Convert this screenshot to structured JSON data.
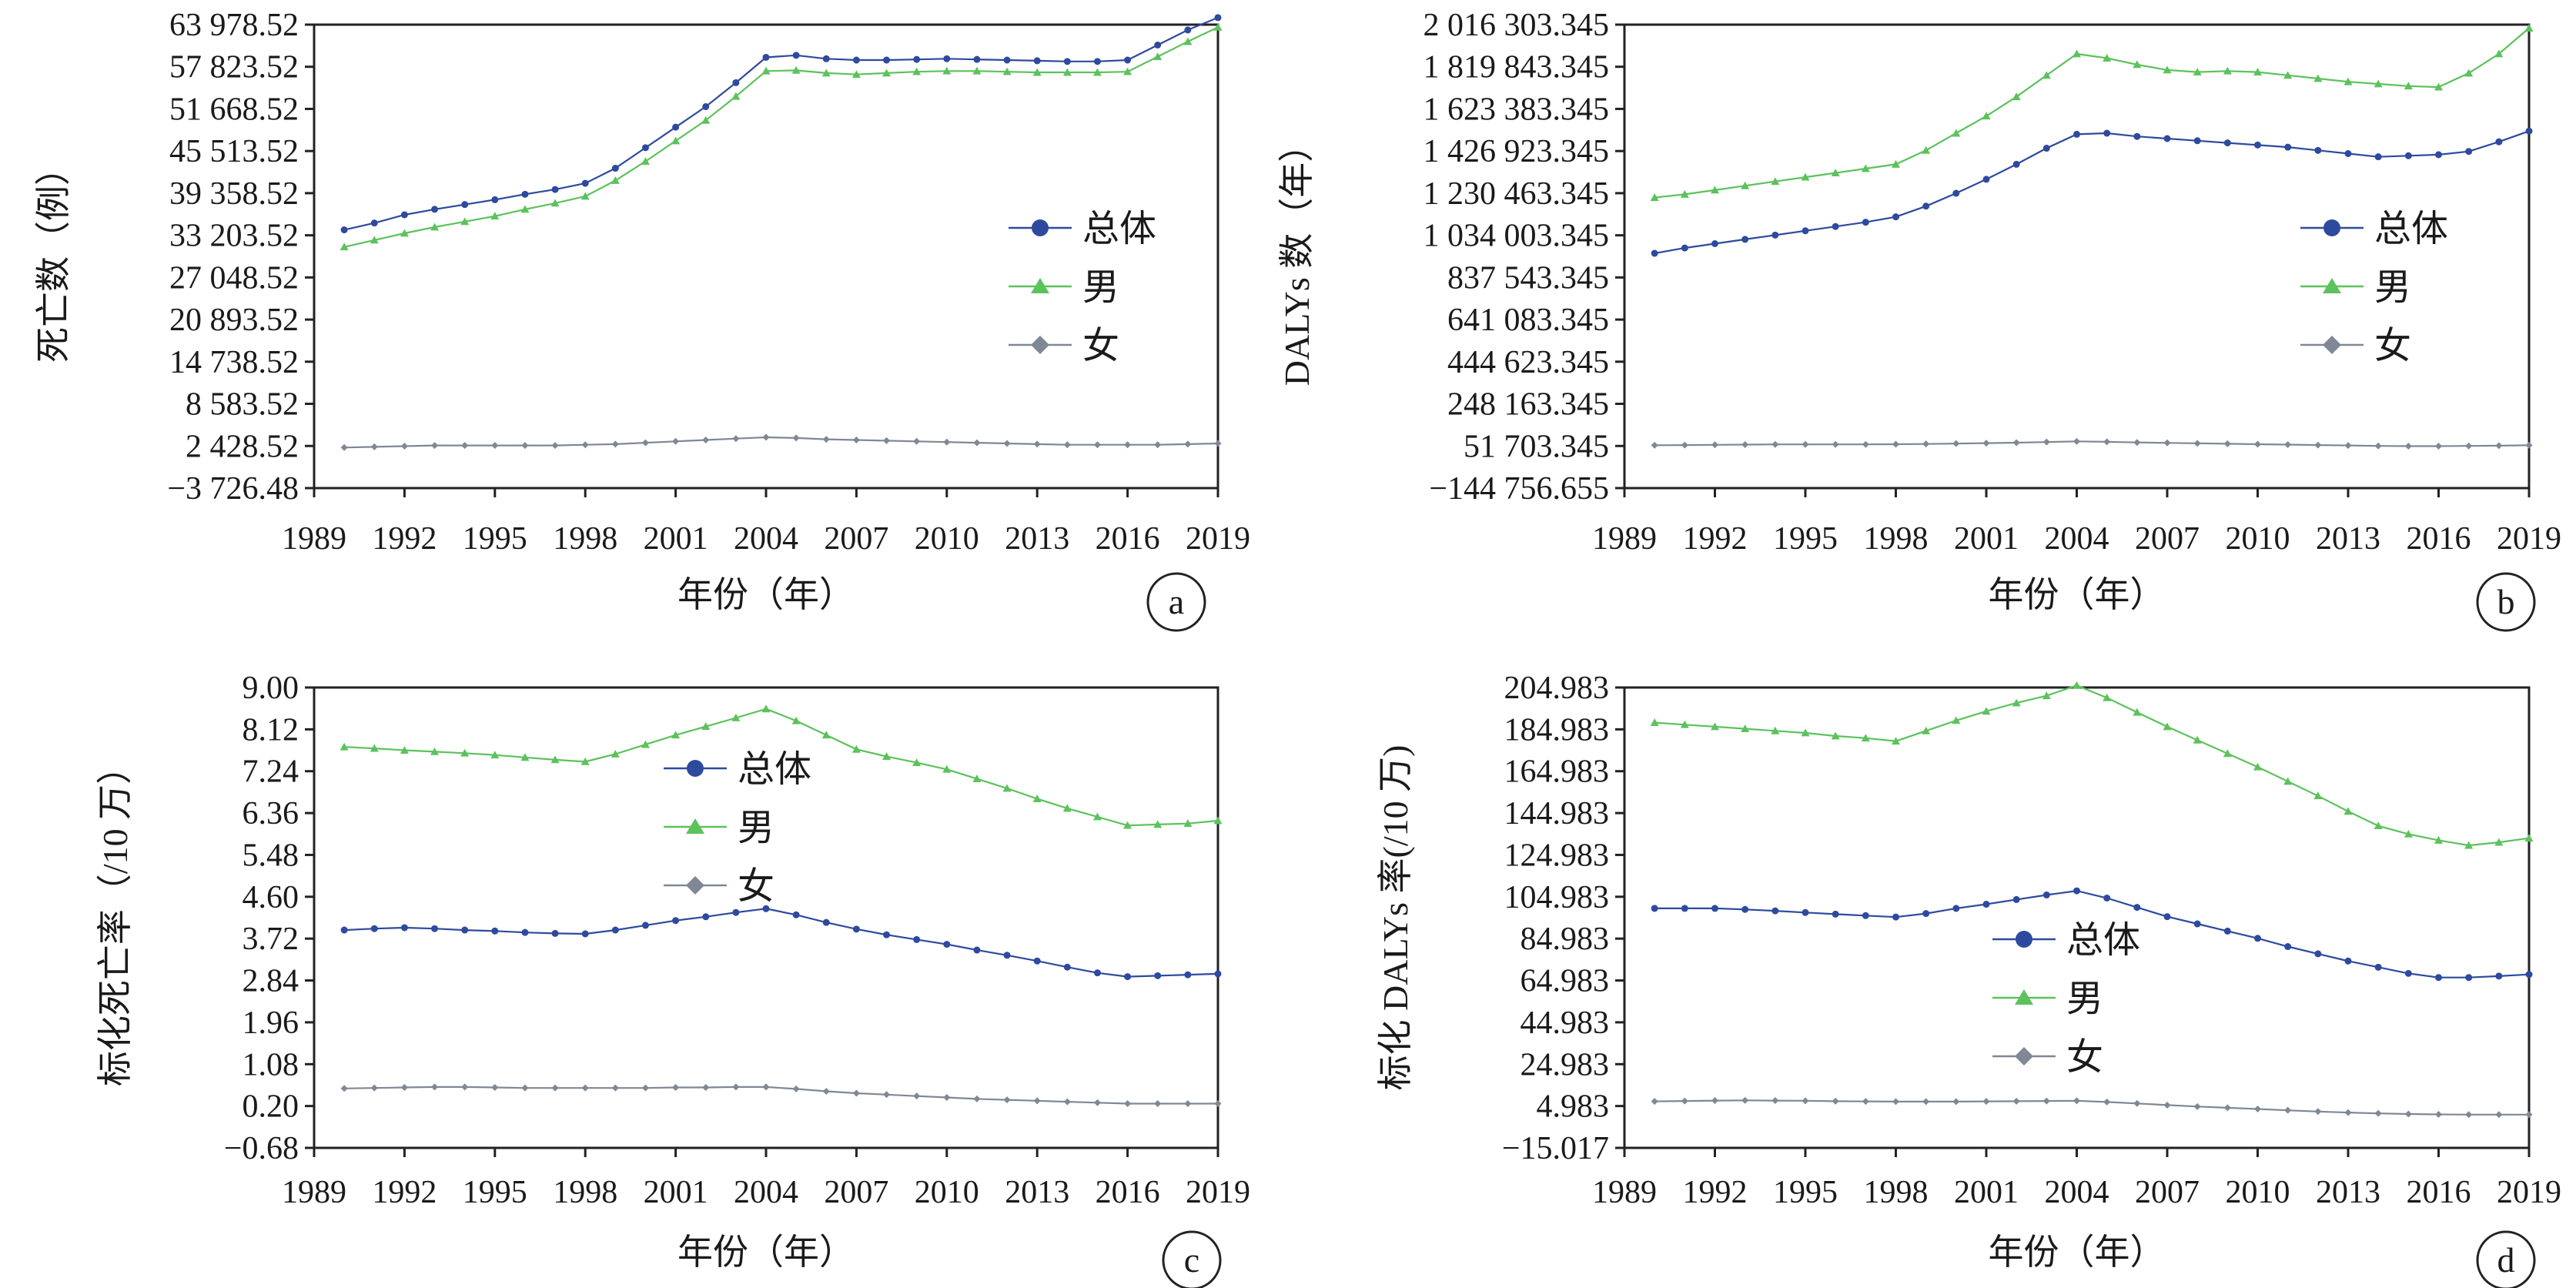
{
  "chart_data": [
    {
      "panel": "a",
      "type": "line",
      "xlabel": "年份（年）",
      "ylabel": "死亡数（例）",
      "y_ticks": [
        "63 978.52",
        "57 823.52",
        "51 668.52",
        "45 513.52",
        "39 358.52",
        "33 203.52",
        "27 048.52",
        "20 893.52",
        "14 738.52",
        "8 583.52",
        "2 428.52",
        "−3 726.48"
      ],
      "ylim": [
        -3726.48,
        63978.52
      ],
      "x_ticks": [
        "1989",
        "1992",
        "1995",
        "1998",
        "2001",
        "2004",
        "2007",
        "2010",
        "2013",
        "2016",
        "2019"
      ],
      "xlim": [
        1989,
        2019
      ],
      "legend": "right-middle",
      "series": [
        {
          "name": "总体",
          "color": "#2e4a9e",
          "marker": "circle",
          "x": [
            1990,
            1991,
            1992,
            1993,
            1994,
            1995,
            1996,
            1997,
            1998,
            1999,
            2000,
            2001,
            2002,
            2003,
            2004,
            2005,
            2006,
            2007,
            2008,
            2009,
            2010,
            2011,
            2012,
            2013,
            2014,
            2015,
            2016,
            2017,
            2018,
            2019
          ],
          "values": [
            34000,
            35000,
            36200,
            37000,
            37700,
            38400,
            39200,
            39900,
            40800,
            43000,
            46000,
            49000,
            52000,
            55500,
            59200,
            59500,
            59000,
            58800,
            58800,
            58900,
            59000,
            58900,
            58800,
            58700,
            58600,
            58600,
            58800,
            61000,
            63200,
            65000
          ]
        },
        {
          "name": "男",
          "color": "#5cc25c",
          "marker": "triangle",
          "x": [
            1990,
            1991,
            1992,
            1993,
            1994,
            1995,
            1996,
            1997,
            1998,
            1999,
            2000,
            2001,
            2002,
            2003,
            2004,
            2005,
            2006,
            2007,
            2008,
            2009,
            2010,
            2011,
            2012,
            2013,
            2014,
            2015,
            2016,
            2017,
            2018,
            2019
          ],
          "values": [
            31500,
            32500,
            33500,
            34400,
            35200,
            36000,
            37000,
            37900,
            38900,
            41200,
            44000,
            47000,
            50000,
            53500,
            57200,
            57300,
            56900,
            56700,
            56900,
            57100,
            57200,
            57200,
            57100,
            57000,
            57000,
            57000,
            57100,
            59300,
            61500,
            63600
          ]
        },
        {
          "name": "女",
          "color": "#7f8894",
          "marker": "diamond",
          "x": [
            1990,
            1991,
            1992,
            1993,
            1994,
            1995,
            1996,
            1997,
            1998,
            1999,
            2000,
            2001,
            2002,
            2003,
            2004,
            2005,
            2006,
            2007,
            2008,
            2009,
            2010,
            2011,
            2012,
            2013,
            2014,
            2015,
            2016,
            2017,
            2018,
            2019
          ],
          "values": [
            2200,
            2300,
            2400,
            2500,
            2500,
            2500,
            2500,
            2500,
            2600,
            2700,
            2900,
            3100,
            3300,
            3500,
            3700,
            3600,
            3400,
            3300,
            3200,
            3100,
            3000,
            2900,
            2800,
            2700,
            2600,
            2600,
            2600,
            2600,
            2700,
            2800
          ]
        }
      ]
    },
    {
      "panel": "b",
      "type": "line",
      "xlabel": "年份（年）",
      "ylabel": "DALYs 数（年）",
      "y_ticks": [
        "2 016 303.345",
        "1 819 843.345",
        "1 623 383.345",
        "1 426 923.345",
        "1 230 463.345",
        "1 034 003.345",
        "837 543.345",
        "641 083.345",
        "444 623.345",
        "248 163.345",
        "51 703.345",
        "−144 756.655"
      ],
      "ylim": [
        -144756.655,
        2016303.345
      ],
      "x_ticks": [
        "1989",
        "1992",
        "1995",
        "1998",
        "2001",
        "2004",
        "2007",
        "2010",
        "2013",
        "2016",
        "2019"
      ],
      "xlim": [
        1989,
        2019
      ],
      "legend": "right-middle",
      "series": [
        {
          "name": "总体",
          "color": "#2e4a9e",
          "marker": "circle",
          "x": [
            1990,
            1991,
            1992,
            1993,
            1994,
            1995,
            1996,
            1997,
            1998,
            1999,
            2000,
            2001,
            2002,
            2003,
            2004,
            2005,
            2006,
            2007,
            2008,
            2009,
            2010,
            2011,
            2012,
            2013,
            2014,
            2015,
            2016,
            2017,
            2018,
            2019
          ],
          "values": [
            950000,
            975000,
            995000,
            1015000,
            1035000,
            1055000,
            1075000,
            1095000,
            1120000,
            1170000,
            1230000,
            1295000,
            1365000,
            1440000,
            1505000,
            1510000,
            1495000,
            1485000,
            1475000,
            1465000,
            1455000,
            1445000,
            1430000,
            1415000,
            1400000,
            1405000,
            1410000,
            1425000,
            1470000,
            1520000
          ]
        },
        {
          "name": "男",
          "color": "#5cc25c",
          "marker": "triangle",
          "x": [
            1990,
            1991,
            1992,
            1993,
            1994,
            1995,
            1996,
            1997,
            1998,
            1999,
            2000,
            2001,
            2002,
            2003,
            2004,
            2005,
            2006,
            2007,
            2008,
            2009,
            2010,
            2011,
            2012,
            2013,
            2014,
            2015,
            2016,
            2017,
            2018,
            2019
          ],
          "values": [
            1210000,
            1225000,
            1245000,
            1265000,
            1285000,
            1305000,
            1325000,
            1345000,
            1365000,
            1430000,
            1510000,
            1590000,
            1680000,
            1780000,
            1880000,
            1860000,
            1830000,
            1805000,
            1795000,
            1800000,
            1795000,
            1780000,
            1765000,
            1750000,
            1740000,
            1730000,
            1725000,
            1790000,
            1880000,
            2000000
          ]
        },
        {
          "name": "女",
          "color": "#7f8894",
          "marker": "diamond",
          "x": [
            1990,
            1991,
            1992,
            1993,
            1994,
            1995,
            1996,
            1997,
            1998,
            1999,
            2000,
            2001,
            2002,
            2003,
            2004,
            2005,
            2006,
            2007,
            2008,
            2009,
            2010,
            2011,
            2012,
            2013,
            2014,
            2015,
            2016,
            2017,
            2018,
            2019
          ],
          "values": [
            55000,
            56000,
            57000,
            58000,
            59000,
            59000,
            59000,
            59000,
            60000,
            61000,
            63000,
            65000,
            67000,
            70000,
            73000,
            71000,
            68000,
            66000,
            64000,
            62000,
            60000,
            58000,
            56000,
            54000,
            52000,
            51000,
            51000,
            52000,
            53000,
            55000
          ]
        }
      ]
    },
    {
      "panel": "c",
      "type": "line",
      "xlabel": "年份（年）",
      "ylabel": "标化死亡率（/10 万）",
      "y_ticks": [
        "9.00",
        "8.12",
        "7.24",
        "6.36",
        "5.48",
        "4.60",
        "3.72",
        "2.84",
        "1.96",
        "1.08",
        "0.20",
        "−0.68"
      ],
      "ylim": [
        -0.68,
        9.0
      ],
      "x_ticks": [
        "1989",
        "1992",
        "1995",
        "1998",
        "2001",
        "2004",
        "2007",
        "2010",
        "2013",
        "2016",
        "2019"
      ],
      "xlim": [
        1989,
        2019
      ],
      "legend": "center-top",
      "series": [
        {
          "name": "总体",
          "color": "#2e4a9e",
          "marker": "circle",
          "x": [
            1990,
            1991,
            1992,
            1993,
            1994,
            1995,
            1996,
            1997,
            1998,
            1999,
            2000,
            2001,
            2002,
            2003,
            2004,
            2005,
            2006,
            2007,
            2008,
            2009,
            2010,
            2011,
            2012,
            2013,
            2014,
            2015,
            2016,
            2017,
            2018,
            2019
          ],
          "values": [
            3.9,
            3.93,
            3.95,
            3.93,
            3.9,
            3.88,
            3.85,
            3.83,
            3.82,
            3.9,
            4.0,
            4.1,
            4.18,
            4.27,
            4.35,
            4.22,
            4.06,
            3.92,
            3.8,
            3.7,
            3.6,
            3.48,
            3.37,
            3.25,
            3.12,
            3.0,
            2.92,
            2.94,
            2.96,
            2.98
          ]
        },
        {
          "name": "男",
          "color": "#5cc25c",
          "marker": "triangle",
          "x": [
            1990,
            1991,
            1992,
            1993,
            1994,
            1995,
            1996,
            1997,
            1998,
            1999,
            2000,
            2001,
            2002,
            2003,
            2004,
            2005,
            2006,
            2007,
            2008,
            2009,
            2010,
            2011,
            2012,
            2013,
            2014,
            2015,
            2016,
            2017,
            2018,
            2019
          ],
          "values": [
            7.75,
            7.72,
            7.68,
            7.65,
            7.62,
            7.58,
            7.53,
            7.48,
            7.44,
            7.6,
            7.8,
            8.0,
            8.18,
            8.36,
            8.55,
            8.3,
            8.0,
            7.7,
            7.55,
            7.42,
            7.28,
            7.08,
            6.88,
            6.66,
            6.46,
            6.28,
            6.1,
            6.12,
            6.14,
            6.2
          ]
        },
        {
          "name": "女",
          "color": "#7f8894",
          "marker": "diamond",
          "x": [
            1990,
            1991,
            1992,
            1993,
            1994,
            1995,
            1996,
            1997,
            1998,
            1999,
            2000,
            2001,
            2002,
            2003,
            2004,
            2005,
            2006,
            2007,
            2008,
            2009,
            2010,
            2011,
            2012,
            2013,
            2014,
            2015,
            2016,
            2017,
            2018,
            2019
          ],
          "values": [
            0.57,
            0.58,
            0.59,
            0.6,
            0.6,
            0.59,
            0.58,
            0.58,
            0.58,
            0.58,
            0.58,
            0.59,
            0.59,
            0.6,
            0.6,
            0.56,
            0.51,
            0.47,
            0.44,
            0.41,
            0.38,
            0.35,
            0.33,
            0.31,
            0.29,
            0.27,
            0.25,
            0.25,
            0.25,
            0.25
          ]
        }
      ]
    },
    {
      "panel": "d",
      "type": "line",
      "xlabel": "年份（年）",
      "ylabel": "标化 DALYs 率(/10 万)",
      "y_ticks": [
        "204.983",
        "184.983",
        "164.983",
        "144.983",
        "124.983",
        "104.983",
        "84.983",
        "64.983",
        "44.983",
        "24.983",
        "4.983",
        "−15.017"
      ],
      "ylim": [
        -15.017,
        208
      ],
      "x_ticks": [
        "1989",
        "1992",
        "1995",
        "1998",
        "2001",
        "2004",
        "2007",
        "2010",
        "2013",
        "2016",
        "2019"
      ],
      "xlim": [
        1989,
        2019
      ],
      "legend": "center-bottom",
      "series": [
        {
          "name": "总体",
          "color": "#2e4a9e",
          "marker": "circle",
          "x": [
            1990,
            1991,
            1992,
            1993,
            1994,
            1995,
            1996,
            1997,
            1998,
            1999,
            2000,
            2001,
            2002,
            2003,
            2004,
            2005,
            2006,
            2007,
            2008,
            2009,
            2010,
            2011,
            2012,
            2013,
            2014,
            2015,
            2016,
            2017,
            2018,
            2019
          ],
          "values": [
            101,
            101,
            101,
            100.5,
            99.8,
            99,
            98.2,
            97.5,
            96.8,
            98.5,
            101,
            103,
            105.3,
            107.5,
            109.5,
            106,
            101.5,
            97,
            93.5,
            90,
            86.5,
            82.5,
            79,
            75.5,
            72.5,
            69.5,
            67.5,
            67.5,
            68.2,
            69
          ]
        },
        {
          "name": "男",
          "color": "#5cc25c",
          "marker": "triangle",
          "x": [
            1990,
            1991,
            1992,
            1993,
            1994,
            1995,
            1996,
            1997,
            1998,
            1999,
            2000,
            2001,
            2002,
            2003,
            2004,
            2005,
            2006,
            2007,
            2008,
            2009,
            2010,
            2011,
            2012,
            2013,
            2014,
            2015,
            2016,
            2017,
            2018,
            2019
          ],
          "values": [
            191,
            190,
            189,
            188,
            187,
            186,
            184.5,
            183.5,
            182,
            187,
            192,
            196.5,
            200.5,
            204,
            209,
            203,
            196,
            189,
            182.5,
            176,
            169.5,
            162.5,
            155.5,
            148,
            141,
            137,
            134,
            131.5,
            133,
            135
          ]
        },
        {
          "name": "女",
          "color": "#7f8894",
          "marker": "diamond",
          "x": [
            1990,
            1991,
            1992,
            1993,
            1994,
            1995,
            1996,
            1997,
            1998,
            1999,
            2000,
            2001,
            2002,
            2003,
            2004,
            2005,
            2006,
            2007,
            2008,
            2009,
            2010,
            2011,
            2012,
            2013,
            2014,
            2015,
            2016,
            2017,
            2018,
            2019
          ],
          "values": [
            7.5,
            7.7,
            7.9,
            8.0,
            7.9,
            7.8,
            7.6,
            7.5,
            7.4,
            7.4,
            7.4,
            7.5,
            7.6,
            7.7,
            7.8,
            7.2,
            6.5,
            5.7,
            5.0,
            4.4,
            3.8,
            3.2,
            2.6,
            2.1,
            1.7,
            1.4,
            1.2,
            1.1,
            1.1,
            1.1
          ]
        }
      ]
    }
  ]
}
